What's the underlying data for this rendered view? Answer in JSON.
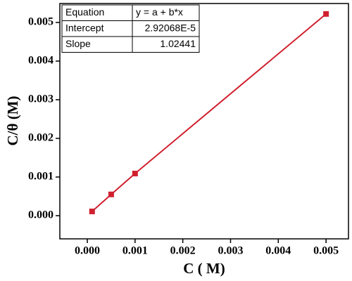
{
  "chart_data": {
    "type": "line",
    "x_label": "C ( M)",
    "y_label": "C/θ (M)",
    "x": [
      0.0001,
      0.0005,
      0.001,
      0.005
    ],
    "series": [
      {
        "color": "#d0202e",
        "values": [
          0.00011,
          0.00055,
          0.00109,
          0.00522
        ]
      }
    ],
    "xlim": [
      -0.000575,
      0.00547
    ],
    "ylim": [
      -0.0006,
      0.00549
    ],
    "xticks": [
      {
        "value": 0,
        "label": "0.000"
      },
      {
        "value": 0.001,
        "label": "0.001"
      },
      {
        "value": 0.002,
        "label": "0.002"
      },
      {
        "value": 0.003,
        "label": "0.003"
      },
      {
        "value": 0.004,
        "label": "0.004"
      },
      {
        "value": 0.005,
        "label": "0.005"
      }
    ],
    "yticks": [
      {
        "value": 0,
        "label": "0.000"
      },
      {
        "value": 0.001,
        "label": "0.001"
      },
      {
        "value": 0.002,
        "label": "0.002"
      },
      {
        "value": 0.003,
        "label": "0.003"
      },
      {
        "value": 0.004,
        "label": "0.004"
      },
      {
        "value": 0.005,
        "label": "0.005"
      }
    ],
    "fit_table": [
      [
        "Equation",
        "y = a + b*x"
      ],
      [
        "Intercept",
        "2.92068E-5"
      ],
      [
        "Slope",
        "1.02441"
      ]
    ]
  }
}
